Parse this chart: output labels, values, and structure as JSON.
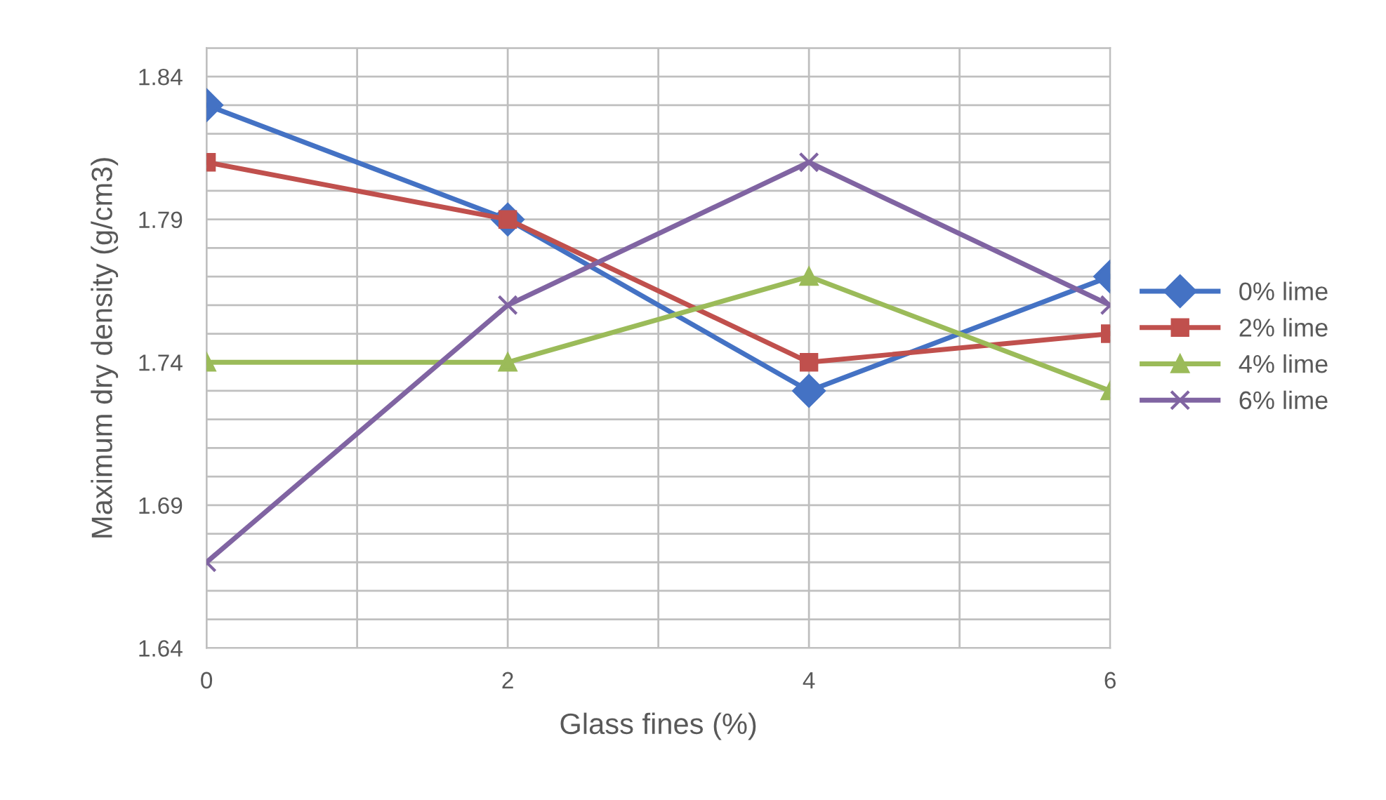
{
  "chart_data": {
    "type": "line",
    "xlabel": "Glass fines (%)",
    "ylabel": "Maximum dry density (g/cm3)",
    "x": [
      0,
      2,
      4,
      6
    ],
    "series": [
      {
        "name": "0% lime",
        "color": "#4472c4",
        "marker": "diamond",
        "values": [
          1.83,
          1.79,
          1.73,
          1.77
        ]
      },
      {
        "name": "2% lime",
        "color": "#c0504d",
        "marker": "square",
        "values": [
          1.81,
          1.79,
          1.74,
          1.75
        ]
      },
      {
        "name": "4% lime",
        "color": "#9bbb59",
        "marker": "triangle",
        "values": [
          1.74,
          1.74,
          1.77,
          1.73
        ]
      },
      {
        "name": "6% lime",
        "color": "#8064a2",
        "marker": "cross",
        "values": [
          1.67,
          1.76,
          1.81,
          1.76
        ]
      }
    ],
    "xlim": [
      0,
      6
    ],
    "xticks": [
      0,
      {
        "value": 1,
        "label": null
      },
      2,
      {
        "value": 3,
        "label": null
      },
      4,
      {
        "value": 5,
        "label": null
      },
      6
    ],
    "ylim": [
      1.64,
      1.85
    ],
    "yticks": [
      1.64,
      {
        "value": 1.65,
        "label": null
      },
      {
        "value": 1.66,
        "label": null
      },
      {
        "value": 1.67,
        "label": null
      },
      {
        "value": 1.68,
        "label": null
      },
      1.69,
      {
        "value": 1.7,
        "label": null
      },
      {
        "value": 1.71,
        "label": null
      },
      {
        "value": 1.72,
        "label": null
      },
      {
        "value": 1.73,
        "label": null
      },
      1.74,
      {
        "value": 1.75,
        "label": null
      },
      {
        "value": 1.76,
        "label": null
      },
      {
        "value": 1.77,
        "label": null
      },
      {
        "value": 1.78,
        "label": null
      },
      1.79,
      {
        "value": 1.8,
        "label": null
      },
      {
        "value": 1.81,
        "label": null
      },
      {
        "value": 1.82,
        "label": null
      },
      {
        "value": 1.83,
        "label": null
      },
      1.84,
      {
        "value": 1.85,
        "label": null
      }
    ],
    "grid": true,
    "legend": "right",
    "line_style": "solid"
  }
}
